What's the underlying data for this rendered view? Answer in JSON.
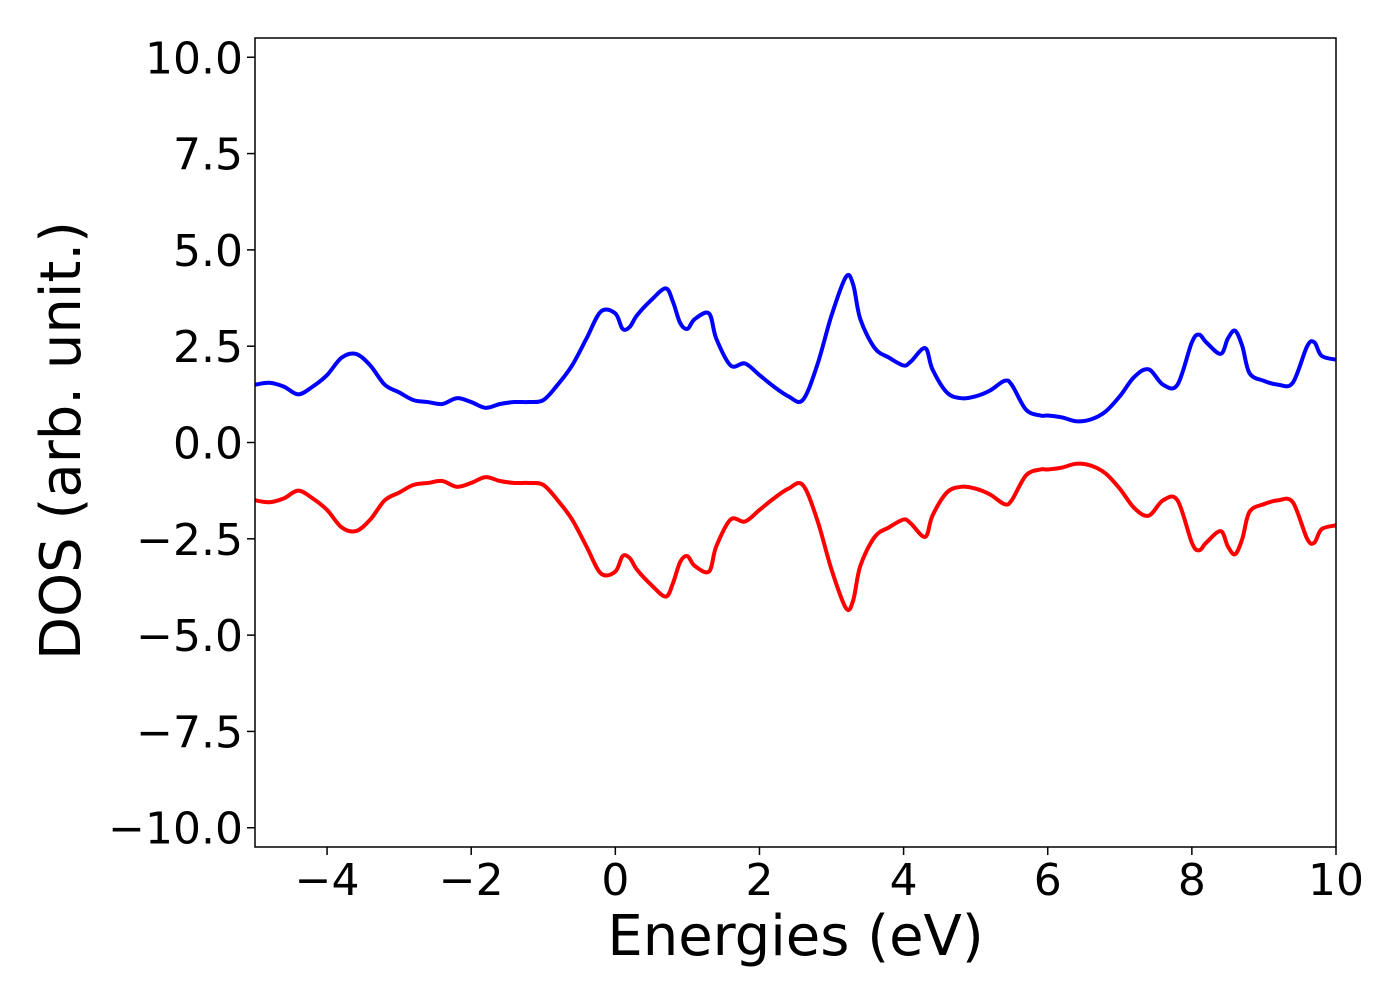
{
  "chart_data": {
    "type": "line",
    "title": "",
    "xlabel": "Energies (eV)",
    "ylabel": "DOS (arb. unit.)",
    "xlim": [
      -5,
      10
    ],
    "ylim": [
      -10.5,
      10.5
    ],
    "grid": false,
    "legend": "none",
    "x_ticks": [
      -4,
      -2,
      0,
      2,
      4,
      6,
      8,
      10
    ],
    "x_tick_labels": [
      "−4",
      "−2",
      "0",
      "2",
      "4",
      "6",
      "8",
      "10"
    ],
    "y_ticks": [
      10.0,
      7.5,
      5.0,
      2.5,
      0.0,
      -2.5,
      -5.0,
      -7.5,
      -10.0
    ],
    "y_tick_labels": [
      "10.0",
      "7.5",
      "5.0",
      "2.5",
      "0.0",
      "−2.5",
      "−5.0",
      "−7.5",
      "−10.0"
    ],
    "series": [
      {
        "color": "#0000ff",
        "x": [
          -5.0,
          -4.8,
          -4.6,
          -4.4,
          -4.2,
          -4.0,
          -3.8,
          -3.6,
          -3.4,
          -3.2,
          -3.0,
          -2.8,
          -2.6,
          -2.4,
          -2.2,
          -2.0,
          -1.8,
          -1.6,
          -1.4,
          -1.2,
          -1.0,
          -0.8,
          -0.6,
          -0.4,
          -0.2,
          0.0,
          0.1,
          0.2,
          0.3,
          0.5,
          0.7,
          0.8,
          0.9,
          1.0,
          1.1,
          1.3,
          1.4,
          1.6,
          1.8,
          2.0,
          2.2,
          2.4,
          2.6,
          2.8,
          3.0,
          3.2,
          3.3,
          3.4,
          3.6,
          3.8,
          4.0,
          4.1,
          4.3,
          4.4,
          4.6,
          4.8,
          5.0,
          5.2,
          5.4,
          5.5,
          5.7,
          5.9,
          6.0,
          6.2,
          6.4,
          6.6,
          6.8,
          7.0,
          7.2,
          7.4,
          7.6,
          7.8,
          8.0,
          8.1,
          8.2,
          8.4,
          8.5,
          8.6,
          8.7,
          8.8,
          9.0,
          9.2,
          9.4,
          9.6,
          9.7,
          9.8,
          10.0
        ],
        "values": [
          1.5,
          1.55,
          1.45,
          1.25,
          1.45,
          1.75,
          2.2,
          2.3,
          2.0,
          1.5,
          1.3,
          1.1,
          1.05,
          1.0,
          1.15,
          1.05,
          0.9,
          1.0,
          1.05,
          1.05,
          1.1,
          1.5,
          2.0,
          2.7,
          3.4,
          3.35,
          2.95,
          3.0,
          3.3,
          3.7,
          4.0,
          3.65,
          3.1,
          2.95,
          3.2,
          3.35,
          2.7,
          2.0,
          2.05,
          1.75,
          1.45,
          1.2,
          1.1,
          2.0,
          3.3,
          4.3,
          4.1,
          3.2,
          2.45,
          2.2,
          2.0,
          2.1,
          2.45,
          1.9,
          1.3,
          1.15,
          1.2,
          1.35,
          1.6,
          1.5,
          0.85,
          0.7,
          0.7,
          0.65,
          0.55,
          0.6,
          0.8,
          1.2,
          1.7,
          1.9,
          1.5,
          1.5,
          2.6,
          2.8,
          2.6,
          2.3,
          2.7,
          2.9,
          2.5,
          1.8,
          1.6,
          1.5,
          1.55,
          2.5,
          2.6,
          2.25,
          2.15
        ]
      },
      {
        "color": "#ff0000",
        "x": [
          -5.0,
          -4.8,
          -4.6,
          -4.4,
          -4.2,
          -4.0,
          -3.8,
          -3.6,
          -3.4,
          -3.2,
          -3.0,
          -2.8,
          -2.6,
          -2.4,
          -2.2,
          -2.0,
          -1.8,
          -1.6,
          -1.4,
          -1.2,
          -1.0,
          -0.8,
          -0.6,
          -0.4,
          -0.2,
          0.0,
          0.1,
          0.2,
          0.3,
          0.5,
          0.7,
          0.8,
          0.9,
          1.0,
          1.1,
          1.3,
          1.4,
          1.6,
          1.8,
          2.0,
          2.2,
          2.4,
          2.6,
          2.8,
          3.0,
          3.2,
          3.3,
          3.4,
          3.6,
          3.8,
          4.0,
          4.1,
          4.3,
          4.4,
          4.6,
          4.8,
          5.0,
          5.2,
          5.4,
          5.5,
          5.7,
          5.9,
          6.0,
          6.2,
          6.4,
          6.6,
          6.8,
          7.0,
          7.2,
          7.4,
          7.6,
          7.8,
          8.0,
          8.1,
          8.2,
          8.4,
          8.5,
          8.6,
          8.7,
          8.8,
          9.0,
          9.2,
          9.4,
          9.6,
          9.7,
          9.8,
          10.0
        ],
        "values": [
          -1.5,
          -1.55,
          -1.45,
          -1.25,
          -1.45,
          -1.75,
          -2.2,
          -2.3,
          -2.0,
          -1.5,
          -1.3,
          -1.1,
          -1.05,
          -1.0,
          -1.15,
          -1.05,
          -0.9,
          -1.0,
          -1.05,
          -1.05,
          -1.1,
          -1.5,
          -2.0,
          -2.7,
          -3.4,
          -3.35,
          -2.95,
          -3.0,
          -3.3,
          -3.7,
          -4.0,
          -3.65,
          -3.1,
          -2.95,
          -3.2,
          -3.35,
          -2.7,
          -2.0,
          -2.05,
          -1.75,
          -1.45,
          -1.2,
          -1.1,
          -2.0,
          -3.3,
          -4.3,
          -4.1,
          -3.2,
          -2.45,
          -2.2,
          -2.0,
          -2.1,
          -2.45,
          -1.9,
          -1.3,
          -1.15,
          -1.2,
          -1.35,
          -1.6,
          -1.5,
          -0.85,
          -0.7,
          -0.7,
          -0.65,
          -0.55,
          -0.6,
          -0.8,
          -1.2,
          -1.7,
          -1.9,
          -1.5,
          -1.5,
          -2.6,
          -2.8,
          -2.6,
          -2.3,
          -2.7,
          -2.9,
          -2.5,
          -1.8,
          -1.6,
          -1.5,
          -1.55,
          -2.5,
          -2.6,
          -2.25,
          -2.15
        ]
      }
    ]
  }
}
